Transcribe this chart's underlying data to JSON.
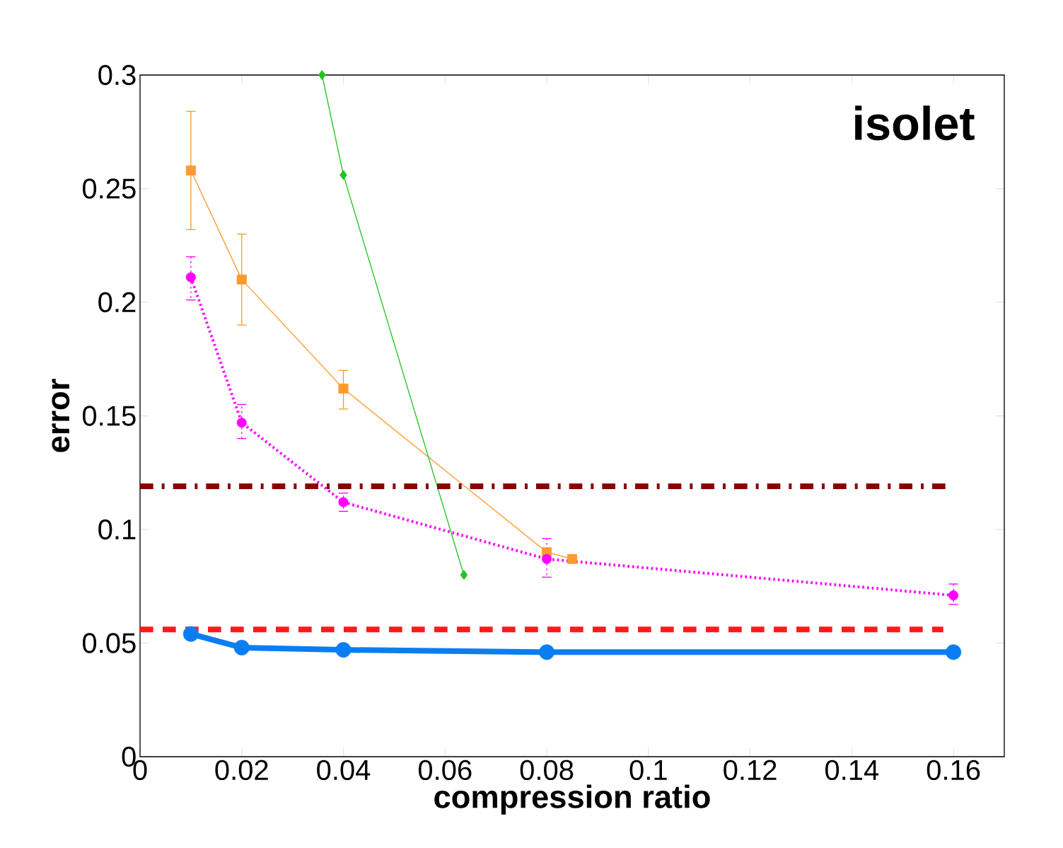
{
  "chart_data": {
    "type": "line",
    "xlabel": "compression ratio",
    "ylabel": "error",
    "annotations": [
      "isolet"
    ],
    "xlim": [
      0,
      0.17
    ],
    "ylim": [
      0,
      0.3
    ],
    "xticks": [
      0,
      0.02,
      0.04,
      0.06,
      0.08,
      0.1,
      0.12,
      0.14,
      0.16
    ],
    "yticks": [
      0,
      0.05,
      0.1,
      0.15,
      0.2,
      0.25,
      0.3
    ],
    "series": [
      {
        "color": "#0a7ef0",
        "x": [
          0.01,
          0.02,
          0.04,
          0.08,
          0.16
        ],
        "values": [
          0.054,
          0.048,
          0.047,
          0.046,
          0.046
        ],
        "marker": "circle",
        "line_style": "solid"
      },
      {
        "color": "#ff9a2e",
        "x": [
          0.01,
          0.02,
          0.04,
          0.08,
          0.085
        ],
        "values": [
          0.258,
          0.21,
          0.162,
          0.09,
          0.087
        ],
        "errors": [
          [
            0.232,
            0.284
          ],
          [
            0.19,
            0.23
          ],
          [
            0.153,
            0.17
          ],
          null,
          null
        ],
        "marker": "square",
        "line_style": "solid"
      },
      {
        "color": "#ff00ff",
        "x": [
          0.01,
          0.02,
          0.04,
          0.08,
          0.16
        ],
        "values": [
          0.211,
          0.147,
          0.112,
          0.087,
          0.071
        ],
        "errors": [
          [
            0.201,
            0.22
          ],
          [
            0.14,
            0.155
          ],
          [
            0.108,
            0.116
          ],
          [
            0.079,
            0.096
          ],
          [
            0.067,
            0.076
          ]
        ],
        "marker": "circle",
        "line_style": "dotted"
      },
      {
        "color": "#22c422",
        "x": [
          0.0358,
          0.04,
          0.0637
        ],
        "values": [
          0.3,
          0.256,
          0.08
        ],
        "marker": "diamond",
        "line_style": "solid"
      },
      {
        "color": "#8b0000",
        "x": [
          0,
          0.159
        ],
        "values": [
          0.119,
          0.119
        ],
        "marker": "none",
        "line_style": "dashdot"
      },
      {
        "color": "#ff1a1a",
        "x": [
          0,
          0.158
        ],
        "values": [
          0.056,
          0.056
        ],
        "marker": "none",
        "line_style": "dashed"
      }
    ]
  }
}
